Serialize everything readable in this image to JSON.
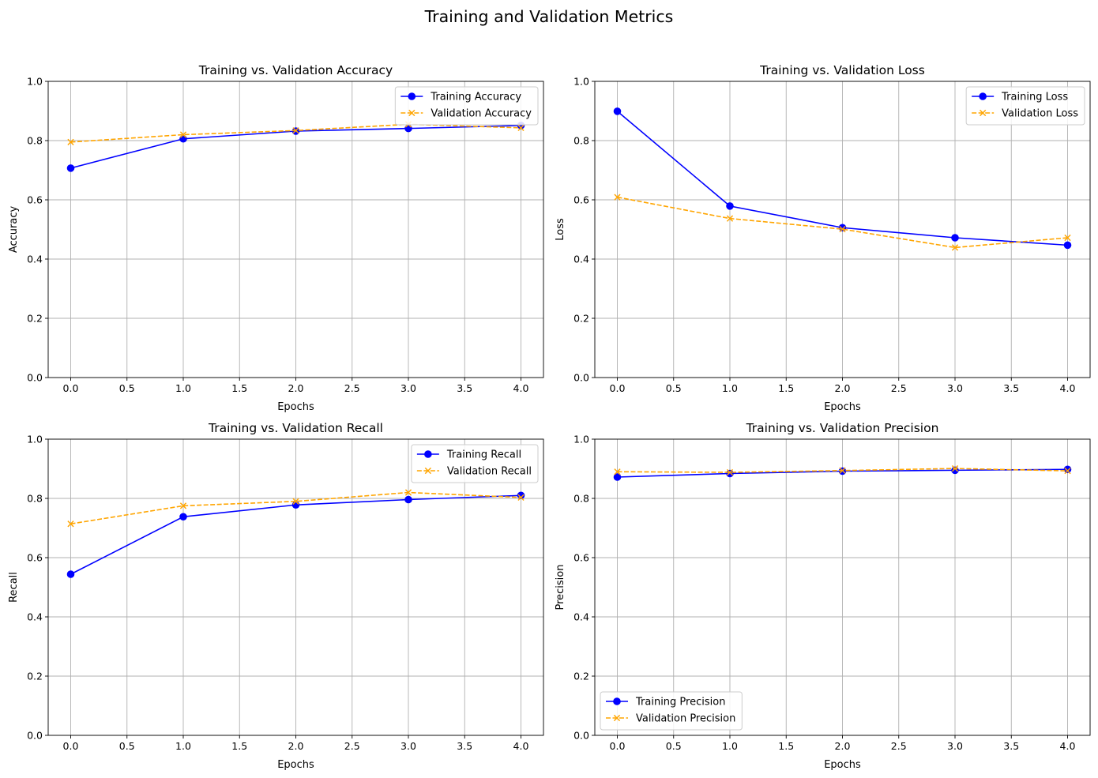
{
  "figure": {
    "suptitle": "Training and Validation Metrics",
    "background": "#ffffff"
  },
  "colors": {
    "training": "#0000ff",
    "validation": "#ffa500",
    "grid": "#b0b0b0",
    "axes": "#000000"
  },
  "chart_data": [
    {
      "type": "line",
      "title": "Training vs. Validation Accuracy",
      "xlabel": "Epochs",
      "ylabel": "Accuracy",
      "xlim": [
        -0.2,
        4.2
      ],
      "ylim": [
        0,
        1
      ],
      "xticks": [
        "0.0",
        "0.5",
        "1.0",
        "1.5",
        "2.0",
        "2.5",
        "3.0",
        "3.5",
        "4.0"
      ],
      "yticks": [
        "0.0",
        "0.2",
        "0.4",
        "0.6",
        "0.8",
        "1.0"
      ],
      "grid": true,
      "legend_position": "upper right",
      "x": [
        0,
        1,
        2,
        3,
        4
      ],
      "series": [
        {
          "name": "Training Accuracy",
          "values": [
            0.707,
            0.806,
            0.832,
            0.841,
            0.851
          ],
          "color": "#0000ff",
          "marker": "circle",
          "linestyle": "solid"
        },
        {
          "name": "Validation Accuracy",
          "values": [
            0.795,
            0.82,
            0.834,
            0.855,
            0.843
          ],
          "color": "#ffa500",
          "marker": "x",
          "linestyle": "dashed"
        }
      ]
    },
    {
      "type": "line",
      "title": "Training vs. Validation Loss",
      "xlabel": "Epochs",
      "ylabel": "Loss",
      "xlim": [
        -0.2,
        4.2
      ],
      "ylim": [
        0,
        1
      ],
      "xticks": [
        "0.0",
        "0.5",
        "1.0",
        "1.5",
        "2.0",
        "2.5",
        "3.0",
        "3.5",
        "4.0"
      ],
      "yticks": [
        "0.0",
        "0.2",
        "0.4",
        "0.6",
        "0.8",
        "1.0"
      ],
      "grid": true,
      "legend_position": "upper right",
      "x": [
        0,
        1,
        2,
        3,
        4
      ],
      "series": [
        {
          "name": "Training Loss",
          "values": [
            0.899,
            0.579,
            0.506,
            0.472,
            0.447
          ],
          "color": "#0000ff",
          "marker": "circle",
          "linestyle": "solid"
        },
        {
          "name": "Validation Loss",
          "values": [
            0.609,
            0.537,
            0.501,
            0.439,
            0.472
          ],
          "color": "#ffa500",
          "marker": "x",
          "linestyle": "dashed"
        }
      ]
    },
    {
      "type": "line",
      "title": "Training vs. Validation Recall",
      "xlabel": "Epochs",
      "ylabel": "Recall",
      "xlim": [
        -0.2,
        4.2
      ],
      "ylim": [
        0,
        1
      ],
      "xticks": [
        "0.0",
        "0.5",
        "1.0",
        "1.5",
        "2.0",
        "2.5",
        "3.0",
        "3.5",
        "4.0"
      ],
      "yticks": [
        "0.0",
        "0.2",
        "0.4",
        "0.6",
        "0.8",
        "1.0"
      ],
      "grid": true,
      "legend_position": "upper right",
      "x": [
        0,
        1,
        2,
        3,
        4
      ],
      "series": [
        {
          "name": "Training Recall",
          "values": [
            0.544,
            0.738,
            0.778,
            0.796,
            0.81
          ],
          "color": "#0000ff",
          "marker": "circle",
          "linestyle": "solid"
        },
        {
          "name": "Validation Recall",
          "values": [
            0.714,
            0.775,
            0.79,
            0.82,
            0.803
          ],
          "color": "#ffa500",
          "marker": "x",
          "linestyle": "dashed"
        }
      ]
    },
    {
      "type": "line",
      "title": "Training vs. Validation Precision",
      "xlabel": "Epochs",
      "ylabel": "Precision",
      "xlim": [
        -0.2,
        4.2
      ],
      "ylim": [
        0,
        1
      ],
      "xticks": [
        "0.0",
        "0.5",
        "1.0",
        "1.5",
        "2.0",
        "2.5",
        "3.0",
        "3.5",
        "4.0"
      ],
      "yticks": [
        "0.0",
        "0.2",
        "0.4",
        "0.6",
        "0.8",
        "1.0"
      ],
      "grid": true,
      "legend_position": "lower left",
      "x": [
        0,
        1,
        2,
        3,
        4
      ],
      "series": [
        {
          "name": "Training Precision",
          "values": [
            0.872,
            0.884,
            0.892,
            0.895,
            0.898
          ],
          "color": "#0000ff",
          "marker": "circle",
          "linestyle": "solid"
        },
        {
          "name": "Validation Precision",
          "values": [
            0.89,
            0.888,
            0.894,
            0.901,
            0.893
          ],
          "color": "#ffa500",
          "marker": "x",
          "linestyle": "dashed"
        }
      ]
    }
  ]
}
